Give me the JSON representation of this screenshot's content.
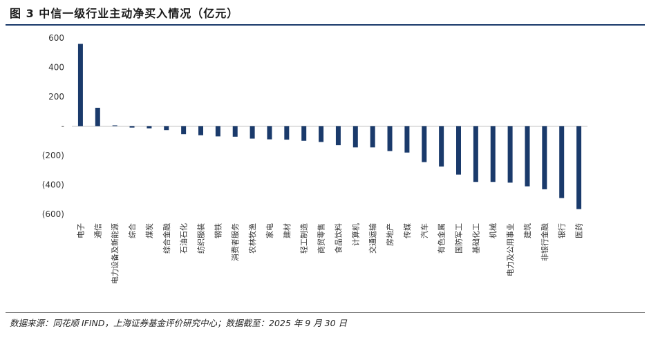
{
  "title": "图 3 中信一级行业主动净买入情况（亿元）",
  "source": "数据来源：同花顺 IFIND，上海证券基金评价研究中心；数据截至：2025 年 9 月 30 日",
  "bar_color": "#1a3a6b",
  "chart_data": {
    "type": "bar",
    "title": "中信一级行业主动净买入情况（亿元）",
    "ylabel": "",
    "xlabel": "",
    "ylim": [
      -600,
      600
    ],
    "yticks": [
      600,
      400,
      200,
      0,
      -200,
      -400,
      -600
    ],
    "ytick_labels": [
      "600",
      "400",
      "200",
      "-",
      "(200)",
      "(400)",
      "(600)"
    ],
    "grid": false,
    "categories": [
      "电子",
      "通信",
      "电力设备及新能源",
      "综合",
      "煤炭",
      "综合金融",
      "石油石化",
      "纺织服装",
      "钢铁",
      "消费者服务",
      "农林牧渔",
      "家电",
      "建材",
      "轻工制造",
      "商贸零售",
      "食品饮料",
      "计算机",
      "交通运输",
      "房地产",
      "传媒",
      "汽车",
      "有色金属",
      "国防军工",
      "基础化工",
      "机械",
      "电力及公用事业",
      "建筑",
      "非银行金融",
      "银行",
      "医药"
    ],
    "values": [
      560,
      125,
      5,
      -10,
      -15,
      -27,
      -55,
      -62,
      -70,
      -72,
      -85,
      -90,
      -92,
      -100,
      -108,
      -130,
      -145,
      -145,
      -170,
      -180,
      -245,
      -275,
      -330,
      -380,
      -380,
      -385,
      -410,
      -430,
      -490,
      -565
    ]
  }
}
